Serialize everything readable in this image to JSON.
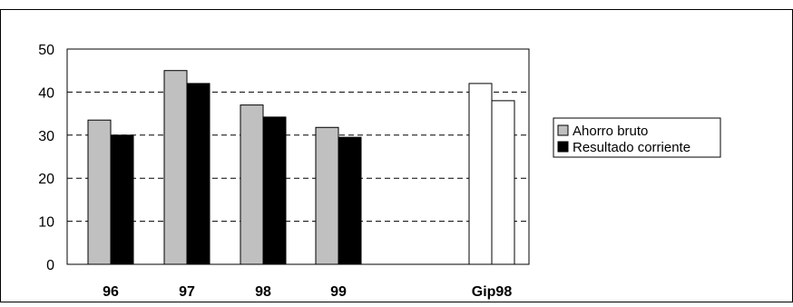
{
  "chart_data": {
    "type": "bar",
    "categories": [
      "96",
      "97",
      "98",
      "99",
      "",
      "Gip98"
    ],
    "series": [
      {
        "name": "Ahorro bruto",
        "values": [
          33.5,
          45,
          37,
          31.8,
          null,
          42
        ],
        "color": "#c0c0c0"
      },
      {
        "name": "Resultado corriente",
        "values": [
          30,
          42,
          34.2,
          29.5,
          null,
          38
        ],
        "color": "#000000"
      }
    ],
    "override_colors": {
      "Gip98": "#ffffff"
    },
    "ylim": [
      0,
      50
    ],
    "yticks": [
      0,
      10,
      20,
      30,
      40,
      50
    ],
    "grid": "dashed horizontal",
    "legend": "right",
    "title": "",
    "xlabel": "",
    "ylabel": ""
  }
}
